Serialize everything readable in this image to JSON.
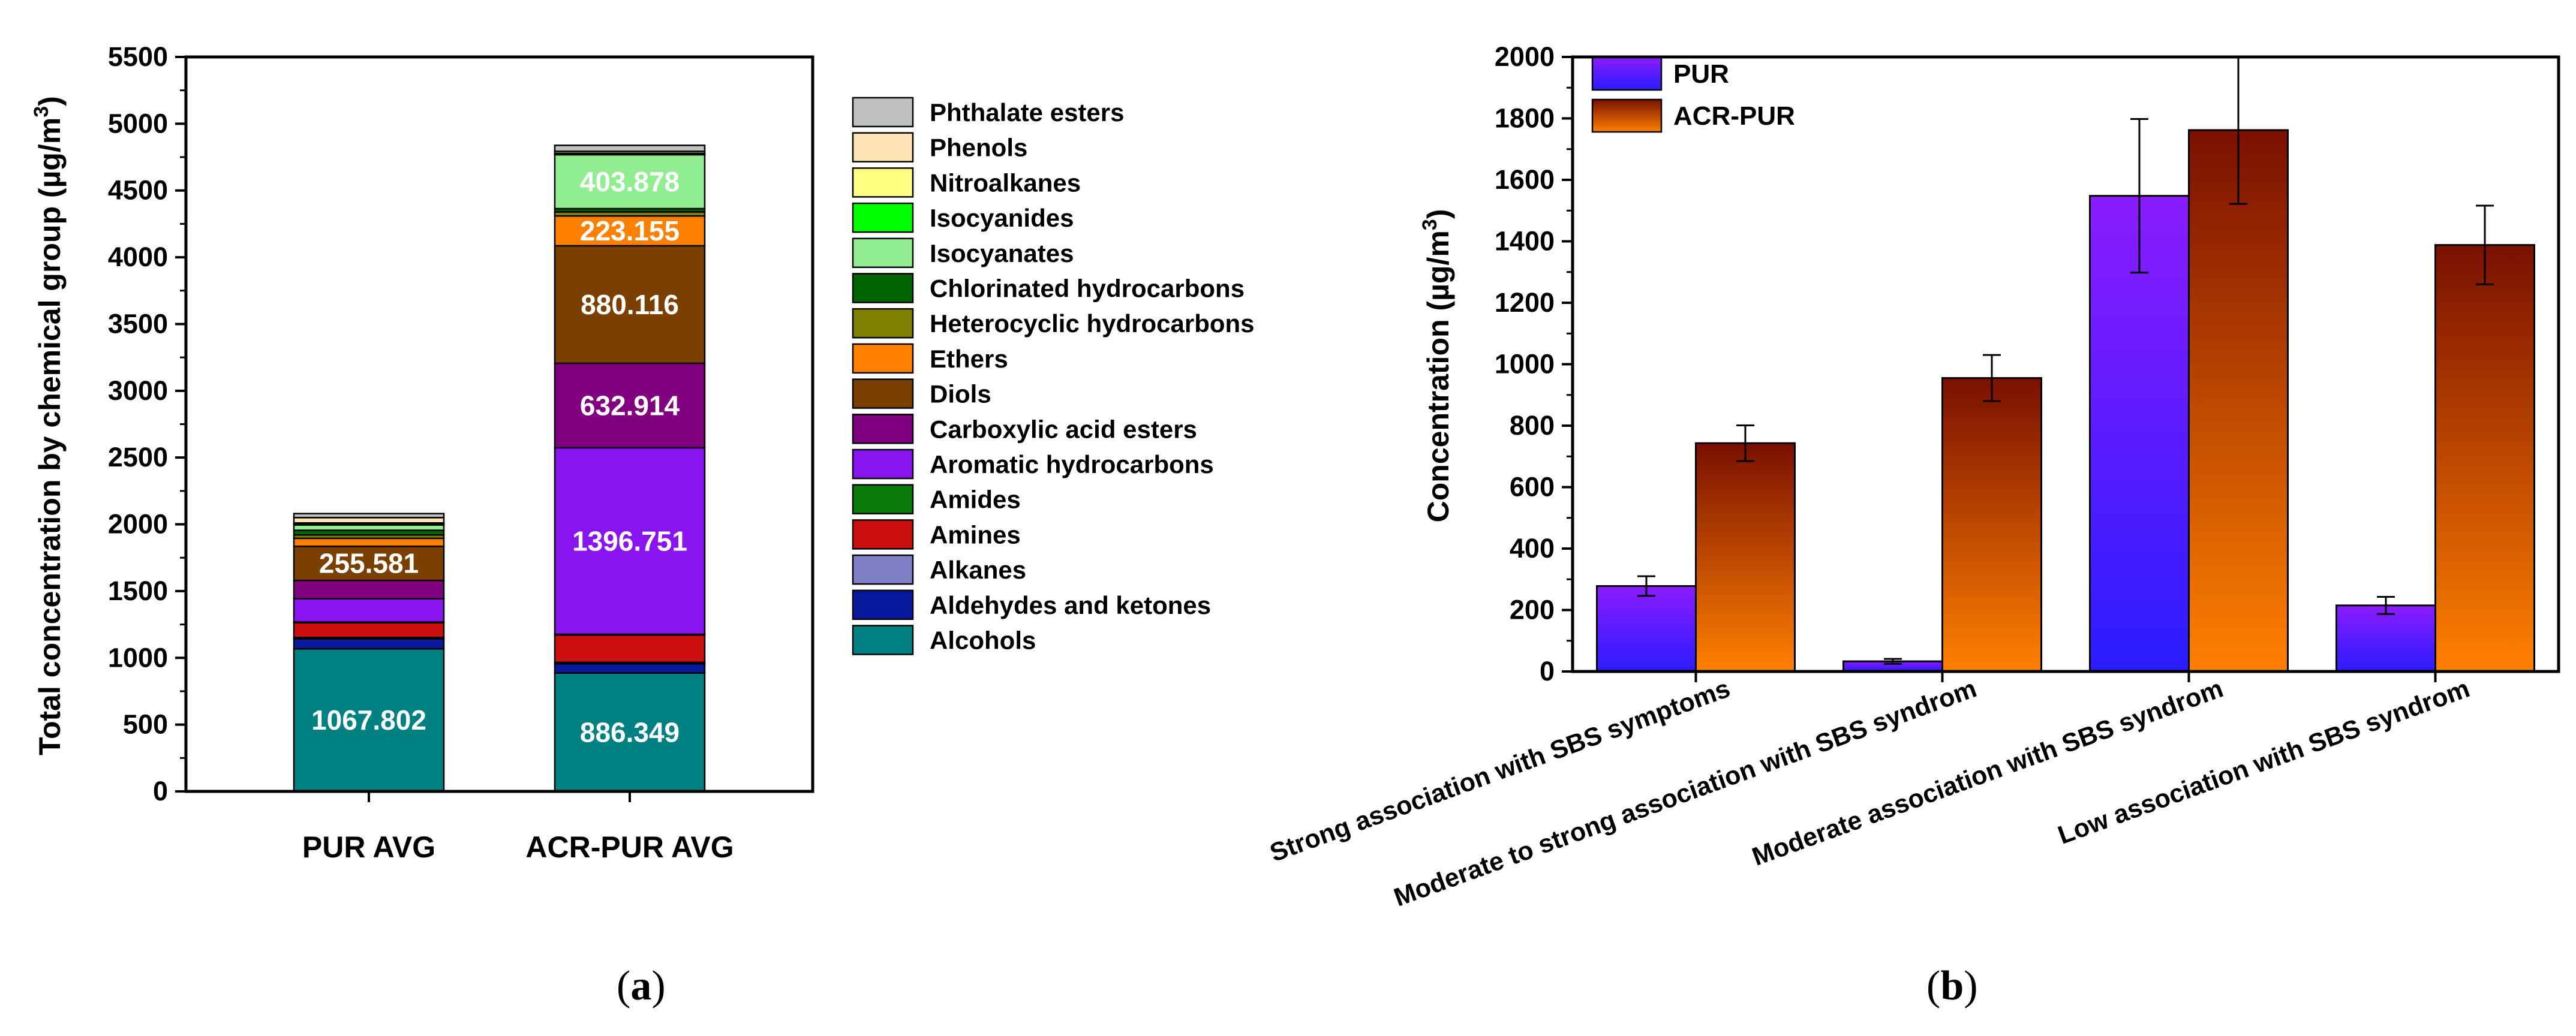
{
  "chart_data": [
    {
      "panel": "a",
      "type": "bar",
      "stacked": true,
      "ylabel_main": "Total concentration by chemical group (µg/m",
      "ylabel_sup": "3",
      "ylabel_end": ")",
      "ylim": [
        0,
        5500
      ],
      "yticks": [
        0,
        500,
        1000,
        1500,
        2000,
        2500,
        3000,
        3500,
        4000,
        4500,
        5000,
        5500
      ],
      "categories": [
        "PUR AVG",
        "ACR-PUR AVG"
      ],
      "legend_position": "right",
      "series": [
        {
          "name": "Alcohols",
          "color": "#008080",
          "values": [
            1067.802,
            886.349
          ]
        },
        {
          "name": "Aldehydes and ketones",
          "color": "#0a1a9e",
          "values": [
            75,
            70
          ]
        },
        {
          "name": "Alkanes",
          "color": "#8080c8",
          "values": [
            10,
            10
          ]
        },
        {
          "name": "Amines",
          "color": "#cc1010",
          "values": [
            110,
            205
          ]
        },
        {
          "name": "Amides",
          "color": "#0a7a0a",
          "values": [
            5,
            5
          ]
        },
        {
          "name": "Aromatic hydrocarbons",
          "color": "#8a14f0",
          "values": [
            175,
            1396.751
          ]
        },
        {
          "name": "Carboxylic acid esters",
          "color": "#800080",
          "values": [
            137,
            632.914
          ]
        },
        {
          "name": "Diols",
          "color": "#7b3f00",
          "values": [
            255.581,
            880.116
          ]
        },
        {
          "name": "Ethers",
          "color": "#ff7f00",
          "values": [
            60,
            223.155
          ]
        },
        {
          "name": "Heterocyclic hydrocarbons",
          "color": "#808000",
          "values": [
            25,
            30
          ]
        },
        {
          "name": "Chlorinated hydrocarbons",
          "color": "#006400",
          "values": [
            35,
            25
          ]
        },
        {
          "name": "Isocyanates",
          "color": "#90ee90",
          "values": [
            40,
            403.878
          ]
        },
        {
          "name": "Isocyanides",
          "color": "#00ff00",
          "values": [
            5,
            5
          ]
        },
        {
          "name": "Nitroalkanes",
          "color": "#ffff80",
          "values": [
            10,
            5
          ]
        },
        {
          "name": "Phenols",
          "color": "#ffe4b5",
          "values": [
            40,
            15
          ]
        },
        {
          "name": "Phthalate esters",
          "color": "#c0c0c0",
          "values": [
            30,
            45
          ]
        }
      ],
      "data_labels": [
        {
          "series": "Alcohols",
          "category": "PUR AVG",
          "text": "1067.802"
        },
        {
          "series": "Diols",
          "category": "PUR AVG",
          "text": "255.581"
        },
        {
          "series": "Alcohols",
          "category": "ACR-PUR AVG",
          "text": "886.349"
        },
        {
          "series": "Aromatic hydrocarbons",
          "category": "ACR-PUR AVG",
          "text": "1396.751"
        },
        {
          "series": "Carboxylic acid esters",
          "category": "ACR-PUR AVG",
          "text": "632.914"
        },
        {
          "series": "Diols",
          "category": "ACR-PUR AVG",
          "text": "880.116"
        },
        {
          "series": "Ethers",
          "category": "ACR-PUR AVG",
          "text": "223.155"
        },
        {
          "series": "Isocyanates",
          "category": "ACR-PUR AVG",
          "text": "403.878"
        }
      ]
    },
    {
      "panel": "b",
      "type": "bar",
      "ylabel_main": "Concentration (µg/m",
      "ylabel_sup": "3",
      "ylabel_end": ")",
      "ylim": [
        0,
        2000
      ],
      "yticks": [
        0,
        200,
        400,
        600,
        800,
        1000,
        1200,
        1400,
        1600,
        1800,
        2000
      ],
      "categories": [
        "Strong association with SBS symptoms",
        "Moderate to strong association with SBS syndrom",
        "Moderate association with SBS syndrom",
        "Low association with SBS syndrom"
      ],
      "legend_position": "top-left",
      "series": [
        {
          "name": "PUR",
          "color_top": "#8a1cff",
          "color_bottom": "#2a1cff",
          "values": [
            278,
            33,
            1548,
            215
          ],
          "errors": [
            32,
            8,
            250,
            28
          ]
        },
        {
          "name": "ACR-PUR",
          "color_top": "#7a1000",
          "color_bottom": "#ff8000",
          "values": [
            743,
            955,
            1762,
            1388
          ],
          "errors": [
            58,
            75,
            240,
            128
          ]
        }
      ]
    }
  ],
  "captions": {
    "a": {
      "open": "(",
      "letter": "a",
      "close": ")"
    },
    "b": {
      "open": "(",
      "letter": "b",
      "close": ")"
    }
  }
}
